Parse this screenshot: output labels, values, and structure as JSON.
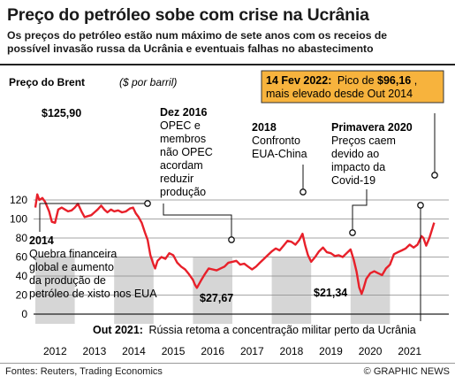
{
  "header": {
    "title": "Preço do petróleo sobe com crise na Ucrânia",
    "subtitle_line1": "Os preços do petróleo estão num máximo de sete anos com os receios de",
    "subtitle_line2": "possível invasão russa da Ucrânia e eventuais falhas no abastecimento"
  },
  "footer": {
    "source": "Fontes: Reuters, Trading Economics",
    "credit": "© GRAPHIC NEWS"
  },
  "colors": {
    "line": "#e8202a",
    "band": "#d6d6d6",
    "callout_bg": "#f7b33d",
    "grid": "#888888"
  },
  "chart_data": {
    "type": "line",
    "title": "Preço do Brent",
    "unit": "($ por barril)",
    "ylim": [
      0,
      130
    ],
    "yticks": [
      0,
      20,
      40,
      60,
      80,
      100,
      120
    ],
    "xlim": [
      2012,
      2022.2
    ],
    "year_labels": [
      "2012",
      "2013",
      "2014",
      "2015",
      "2016",
      "2017",
      "2018",
      "2019",
      "2020",
      "2021"
    ],
    "grid": true,
    "series": [
      {
        "x": [
          2012.0,
          2012.05,
          2012.1,
          2012.18,
          2012.25,
          2012.35,
          2012.42,
          2012.5,
          2012.58,
          2012.67,
          2012.75,
          2012.83,
          2012.92,
          2013.0,
          2013.08,
          2013.17,
          2013.25,
          2013.33,
          2013.42,
          2013.5,
          2013.58,
          2013.67,
          2013.75,
          2013.83,
          2013.92,
          2014.0,
          2014.1,
          2014.2,
          2014.3,
          2014.4,
          2014.48,
          2014.55,
          2014.62,
          2014.7,
          2014.78,
          2014.85,
          2014.92,
          2015.0,
          2015.04,
          2015.1,
          2015.2,
          2015.3,
          2015.4,
          2015.5,
          2015.6,
          2015.7,
          2015.8,
          2015.9,
          2016.0,
          2016.05,
          2016.1,
          2016.2,
          2016.3,
          2016.4,
          2016.5,
          2016.6,
          2016.7,
          2016.8,
          2016.9,
          2017.0,
          2017.1,
          2017.2,
          2017.3,
          2017.4,
          2017.5,
          2017.6,
          2017.7,
          2017.8,
          2017.9,
          2018.0,
          2018.1,
          2018.2,
          2018.3,
          2018.4,
          2018.5,
          2018.6,
          2018.7,
          2018.78,
          2018.85,
          2018.92,
          2019.0,
          2019.1,
          2019.2,
          2019.3,
          2019.4,
          2019.5,
          2019.6,
          2019.7,
          2019.8,
          2019.9,
          2020.0,
          2020.08,
          2020.15,
          2020.22,
          2020.28,
          2020.32,
          2020.4,
          2020.5,
          2020.6,
          2020.7,
          2020.8,
          2020.9,
          2021.0,
          2021.1,
          2021.2,
          2021.3,
          2021.4,
          2021.5,
          2021.6,
          2021.7,
          2021.8,
          2021.85,
          2021.92,
          2022.0,
          2022.06,
          2022.12
        ],
        "y": [
          112,
          125.9,
          120,
          122,
          118,
          108,
          97,
          96,
          110,
          112,
          110,
          108,
          109,
          112,
          116,
          108,
          102,
          103,
          104,
          107,
          110,
          114,
          110,
          107,
          110,
          108,
          109,
          107,
          108,
          111,
          112,
          106,
          102,
          96,
          86,
          78,
          62,
          52,
          48,
          56,
          60,
          58,
          64,
          62,
          54,
          50,
          47,
          42,
          36,
          31,
          27.67,
          35,
          42,
          48,
          47,
          46,
          48,
          50,
          54,
          55,
          56,
          52,
          53,
          50,
          47,
          50,
          54,
          58,
          62,
          66,
          69,
          67,
          72,
          77,
          76,
          73,
          78,
          84.5,
          72,
          62,
          55,
          60,
          66,
          70,
          65,
          64,
          61,
          62,
          60,
          64,
          68,
          57,
          45,
          28,
          21.34,
          26,
          37,
          43,
          45,
          43,
          41,
          48,
          52,
          63,
          65,
          67,
          69,
          73,
          70,
          73,
          82,
          80,
          72,
          80,
          88,
          96.16
        ]
      }
    ],
    "highlights": [
      {
        "value": 125.9,
        "label": "$125,90"
      },
      {
        "value": 27.67,
        "label": "$27,67"
      },
      {
        "value": 21.34,
        "label": "$21,34"
      }
    ],
    "annotations": {
      "a2014_title": "2014",
      "a2014_l1": "Quebra financeira",
      "a2014_l2": "global e aumento",
      "a2014_l3": "da produção de",
      "a2014_l4": "petróleo de xisto nos EUA",
      "dez2016_title": "Dez 2016",
      "dez2016_l1": "OPEC e",
      "dez2016_l2": "membros",
      "dez2016_l3": "não OPEC",
      "dez2016_l4": "acordam",
      "dez2016_l5": "reduzir",
      "dez2016_l6": "produção",
      "a2018_title": "2018",
      "a2018_l1": "Confronto",
      "a2018_l2": "EUA-China",
      "prim2020_title": "Primavera 2020",
      "prim2020_l1": "Preços caem",
      "prim2020_l2": "devido ao",
      "prim2020_l3": "impacto da",
      "prim2020_l4": "Covid-19",
      "peak_title": "14 Fev 2022:",
      "peak_text1": "Pico de ",
      "peak_value": "$96,16",
      "peak_comma": ",",
      "peak_text2": "mais elevado desde Out 2014",
      "oct2021_title": "Out 2021:",
      "oct2021_text": "Rússia retoma a concentração militar perto da Ucrânia"
    }
  }
}
